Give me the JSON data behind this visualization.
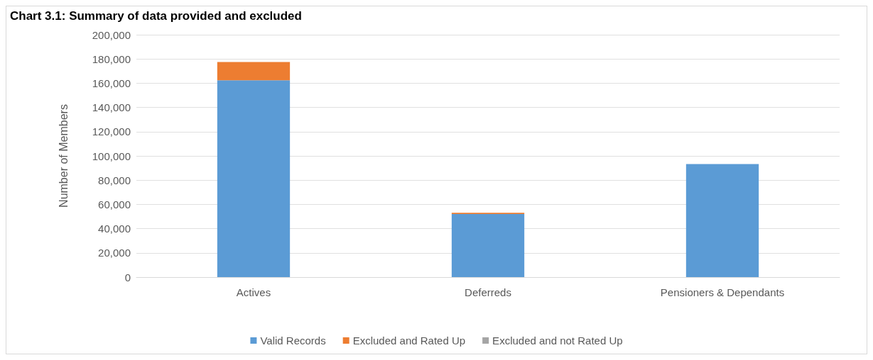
{
  "chart_data": {
    "type": "bar",
    "title": "Chart 3.1: Summary of data provided and excluded",
    "ylabel": "Number of Members",
    "categories": [
      "Actives",
      "Deferreds",
      "Pensioners & Dependants"
    ],
    "stacked": true,
    "series": [
      {
        "name": "Valid Records",
        "color": "#5b9bd5",
        "values": [
          162500,
          52000,
          93300
        ]
      },
      {
        "name": "Excluded and Rated Up",
        "color": "#ed7d31",
        "values": [
          15000,
          1000,
          0
        ]
      },
      {
        "name": "Excluded and not Rated Up",
        "color": "#a5a5a5",
        "values": [
          0,
          0,
          0
        ]
      }
    ],
    "ylim": [
      0,
      200000
    ],
    "yticks": [
      0,
      {
        "value": 20000,
        "label": "20,000"
      },
      {
        "value": 40000,
        "label": "40,000"
      },
      {
        "value": 60000,
        "label": "60,000"
      },
      {
        "value": 80000,
        "label": "80,000"
      },
      {
        "value": 100000,
        "label": "100,000"
      },
      {
        "value": 120000,
        "label": "120,000"
      },
      {
        "value": 140000,
        "label": "140,000"
      },
      {
        "value": 160000,
        "label": "160,000"
      },
      {
        "value": 180000,
        "label": "180,000"
      },
      {
        "value": 200000,
        "label": "200,000"
      }
    ],
    "grid": "y",
    "legend": "bottom"
  }
}
